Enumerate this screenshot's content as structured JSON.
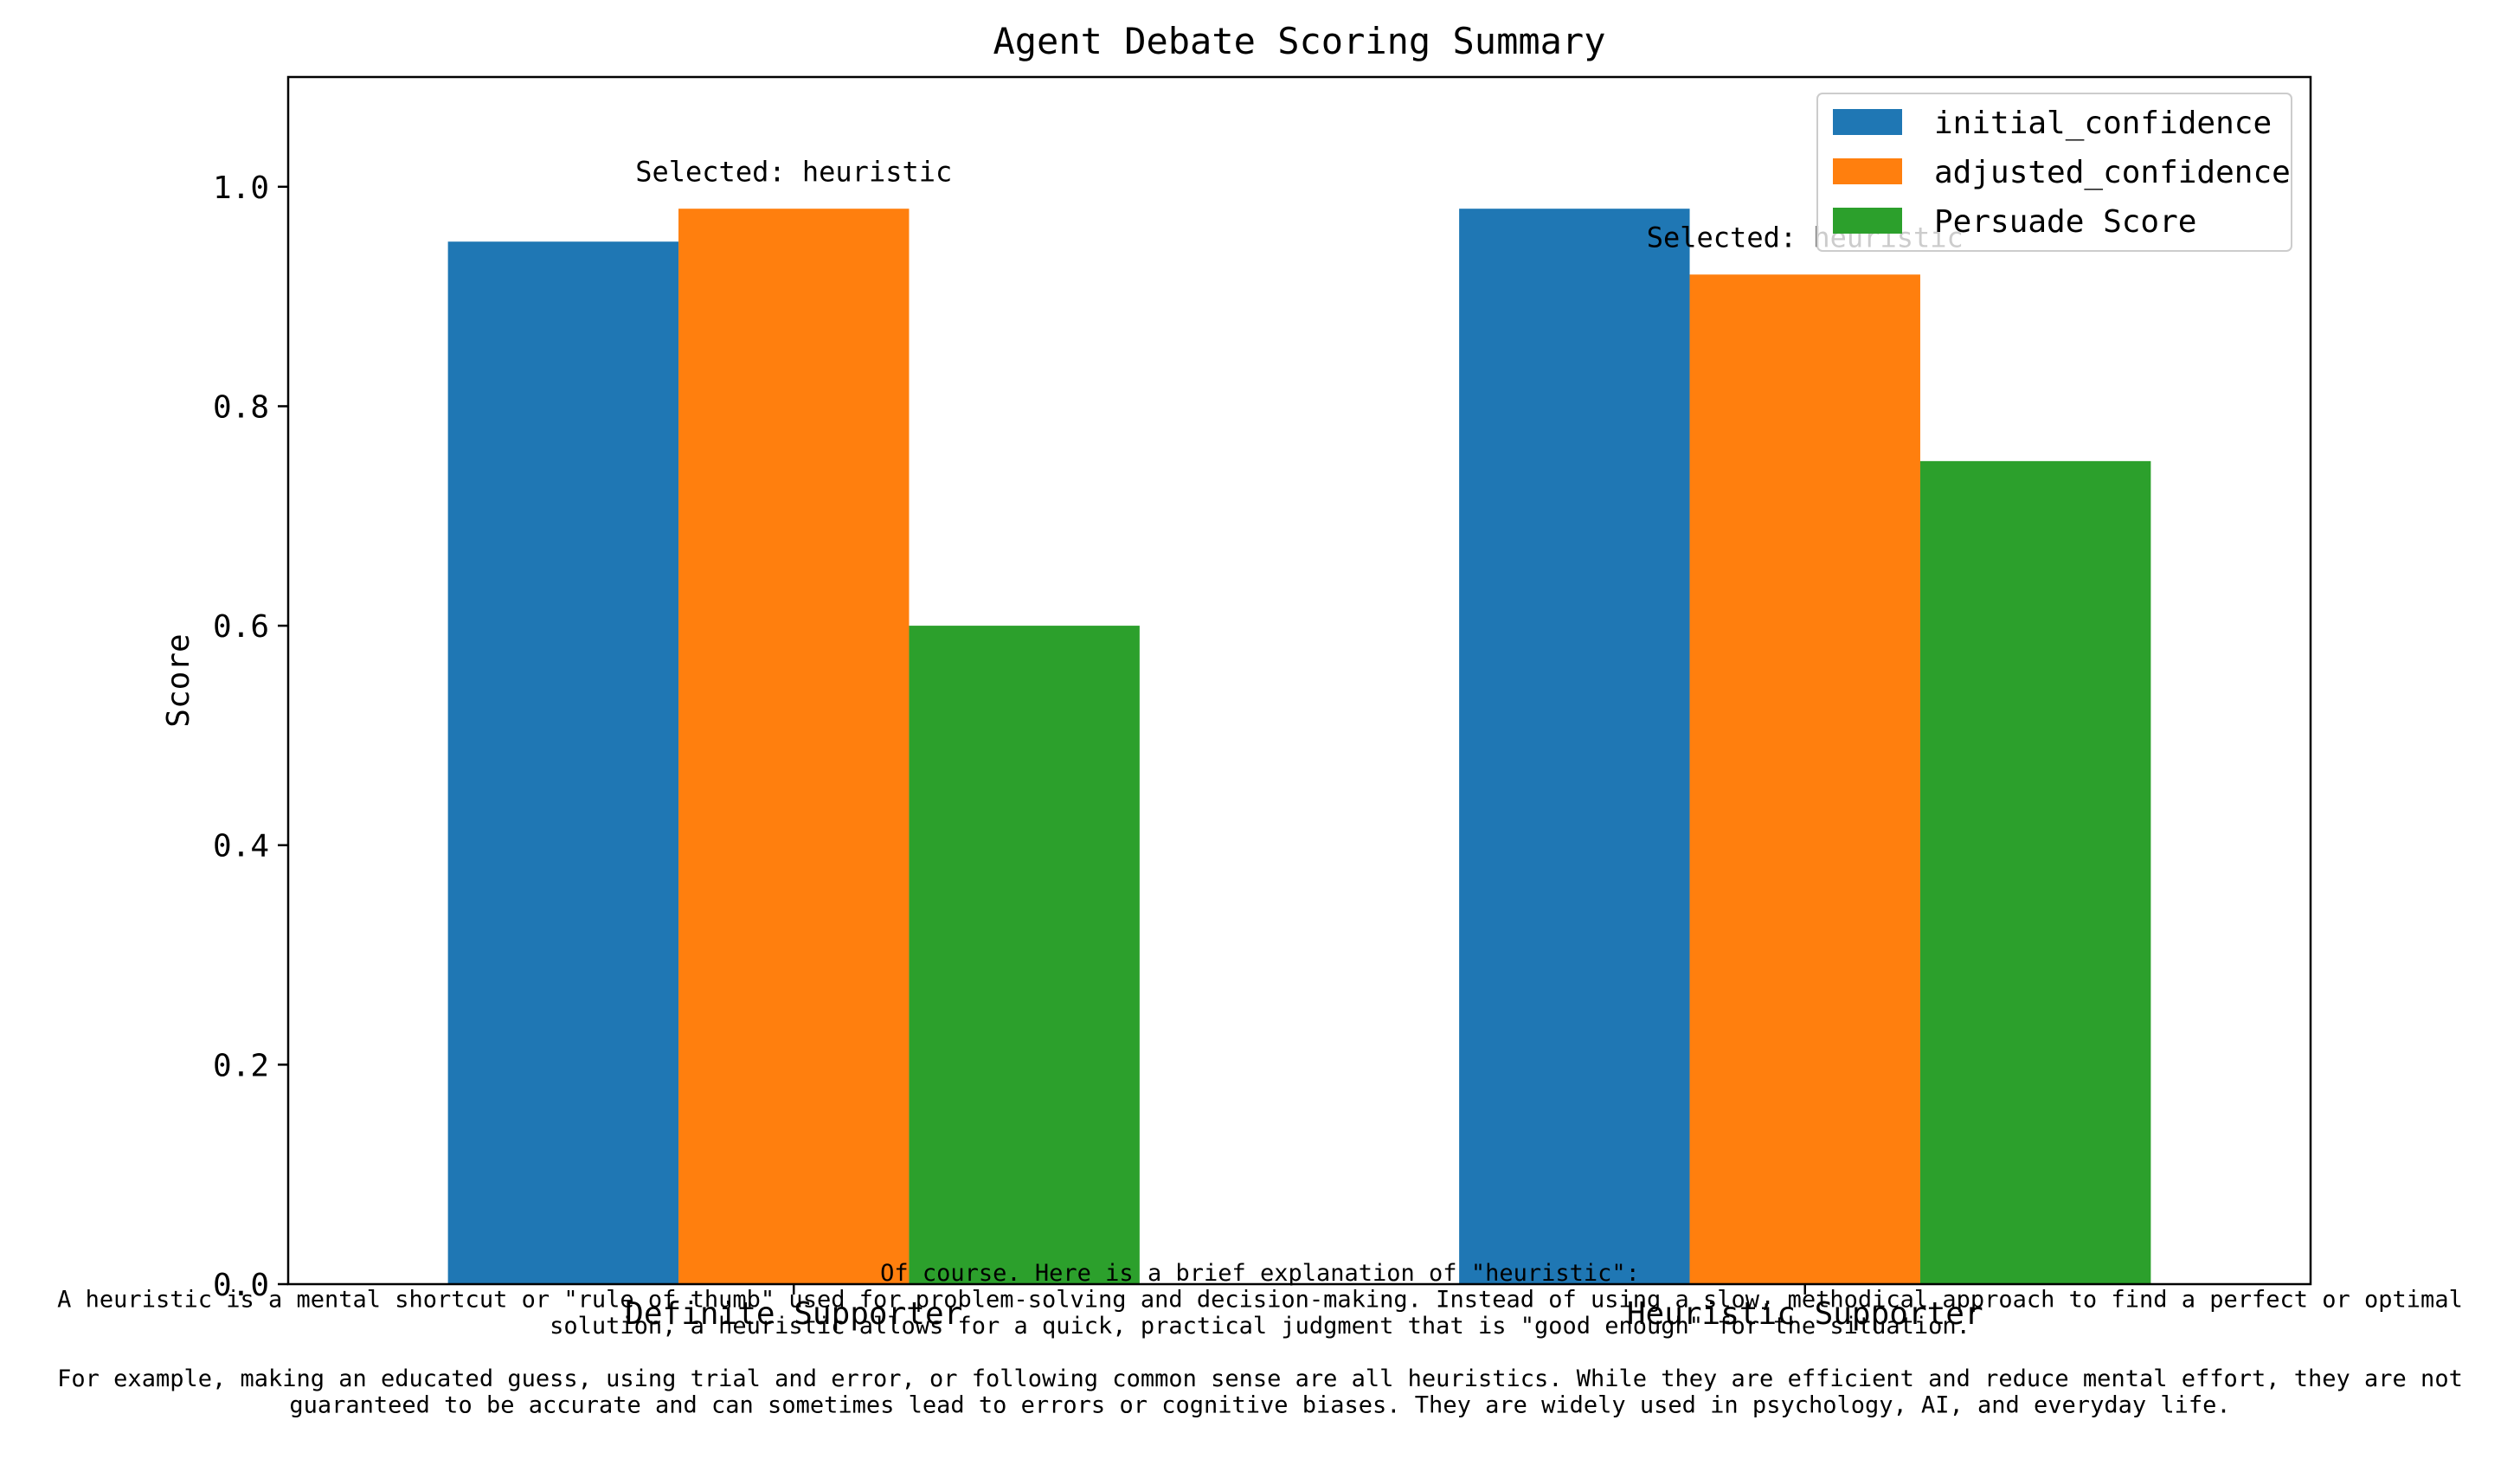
{
  "chart_data": {
    "type": "bar",
    "title": "Agent Debate Scoring Summary",
    "xlabel": "",
    "ylabel": "Score",
    "ylim": [
      0,
      1.1
    ],
    "yticks": [
      0.0,
      0.2,
      0.4,
      0.6,
      0.8,
      1.0
    ],
    "ytick_labels": [
      "0.0",
      "0.2",
      "0.4",
      "0.6",
      "0.8",
      "1.0"
    ],
    "categories": [
      "Definite Supporter",
      "Heuristic Supporter"
    ],
    "series": [
      {
        "name": "initial_confidence",
        "color": "#1f77b4",
        "values": [
          0.95,
          0.98
        ]
      },
      {
        "name": "adjusted_confidence",
        "color": "#ff7f0e",
        "values": [
          0.98,
          0.92
        ]
      },
      {
        "name": "Persuade Score",
        "color": "#2ca02c",
        "values": [
          0.6,
          0.75
        ]
      }
    ],
    "annotations": [
      {
        "text": "Selected: heuristic",
        "category_index": 0,
        "y": 1.005
      },
      {
        "text": "Selected: heuristic",
        "category_index": 1,
        "y": 0.945
      }
    ],
    "legend_position": "top-right",
    "grid": false
  },
  "footnote": {
    "lines": [
      "Of course. Here is a brief explanation of \"heuristic\":",
      "A heuristic is a mental shortcut or \"rule of thumb\" used for problem-solving and decision-making. Instead of using a slow, methodical approach to find a perfect or optimal",
      "solution, a heuristic allows for a quick, practical judgment that is \"good enough\" for the situation.",
      "",
      "For example, making an educated guess, using trial and error, or following common sense are all heuristics. While they are efficient and reduce mental effort, they are not",
      "guaranteed to be accurate and can sometimes lead to errors or cognitive biases. They are widely used in psychology, AI, and everyday life."
    ]
  }
}
